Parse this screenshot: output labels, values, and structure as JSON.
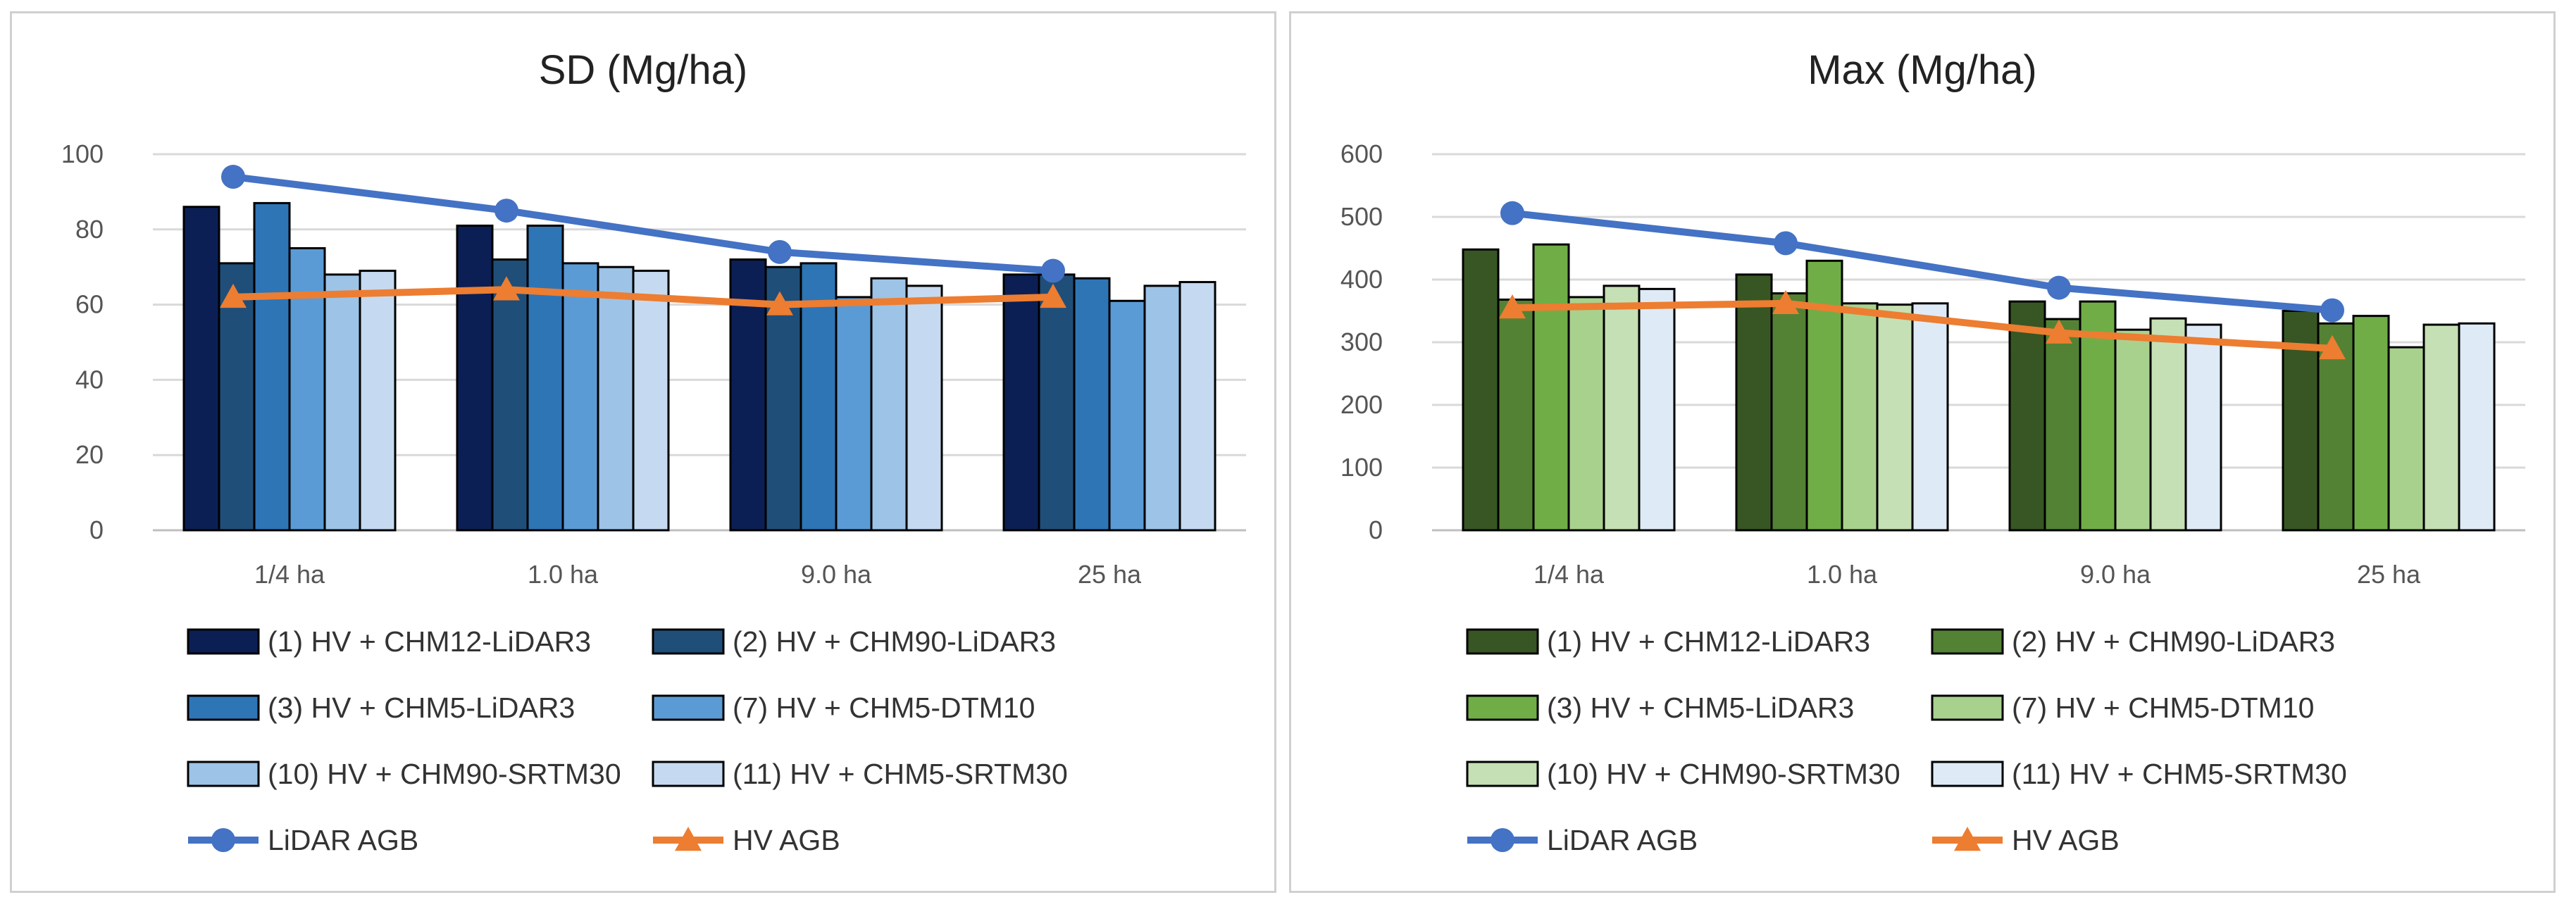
{
  "chart_data": [
    {
      "type": "bar",
      "title": "SD (Mg/ha)",
      "categories": [
        "1/4 ha",
        "1.0 ha",
        "9.0 ha",
        "25 ha"
      ],
      "ylim": [
        0,
        100
      ],
      "yticks": [
        "0",
        "20",
        "40",
        "60",
        "80",
        "100"
      ],
      "series": [
        {
          "name": "(1) HV + CHM12-LiDAR3",
          "color": "#0b1f54",
          "values": [
            86,
            81,
            72,
            68
          ]
        },
        {
          "name": "(2) HV + CHM90-LiDAR3",
          "color": "#1f4e79",
          "values": [
            71,
            72,
            70,
            68
          ]
        },
        {
          "name": "(3) HV + CHM5-LiDAR3",
          "color": "#2e75b6",
          "values": [
            87,
            81,
            71,
            67
          ]
        },
        {
          "name": "(7) HV + CHM5-DTM10",
          "color": "#5b9bd5",
          "values": [
            75,
            71,
            62,
            61
          ]
        },
        {
          "name": "(10) HV + CHM90-SRTM30",
          "color": "#9dc3e6",
          "values": [
            68,
            70,
            67,
            65
          ]
        },
        {
          "name": "(11) HV + CHM5-SRTM30",
          "color": "#c5daf0",
          "values": [
            69,
            69,
            65,
            66
          ]
        }
      ],
      "lines": [
        {
          "name": "LiDAR AGB",
          "color": "#4472c4",
          "marker": "circle",
          "values": [
            94,
            85,
            74,
            69
          ]
        },
        {
          "name": "HV AGB",
          "color": "#ed7d31",
          "marker": "triangle",
          "values": [
            62,
            64,
            60,
            62
          ]
        }
      ]
    },
    {
      "type": "bar",
      "title": "Max (Mg/ha)",
      "categories": [
        "1/4 ha",
        "1.0 ha",
        "9.0 ha",
        "25 ha"
      ],
      "ylim": [
        0,
        600
      ],
      "yticks": [
        "0",
        "100",
        "200",
        "300",
        "400",
        "500",
        "600"
      ],
      "series": [
        {
          "name": "(1) HV + CHM12-LiDAR3",
          "color": "#375623",
          "values": [
            448,
            408,
            365,
            350
          ]
        },
        {
          "name": "(2) HV + CHM90-LiDAR3",
          "color": "#548235",
          "values": [
            368,
            378,
            337,
            330
          ]
        },
        {
          "name": "(3) HV + CHM5-LiDAR3",
          "color": "#70ad47",
          "values": [
            456,
            430,
            365,
            342
          ]
        },
        {
          "name": "(7) HV + CHM5-DTM10",
          "color": "#a9d18e",
          "values": [
            372,
            362,
            320,
            292
          ]
        },
        {
          "name": "(10) HV + CHM90-SRTM30",
          "color": "#c5e0b4",
          "values": [
            390,
            360,
            338,
            328
          ]
        },
        {
          "name": "(11) HV + CHM5-SRTM30",
          "color": "#deebf7",
          "values": [
            385,
            362,
            328,
            330
          ]
        }
      ],
      "lines": [
        {
          "name": "LiDAR AGB",
          "color": "#4472c4",
          "marker": "circle",
          "values": [
            506,
            458,
            387,
            351
          ]
        },
        {
          "name": "HV AGB",
          "color": "#ed7d31",
          "marker": "triangle",
          "values": [
            355,
            362,
            315,
            290
          ]
        }
      ]
    }
  ]
}
